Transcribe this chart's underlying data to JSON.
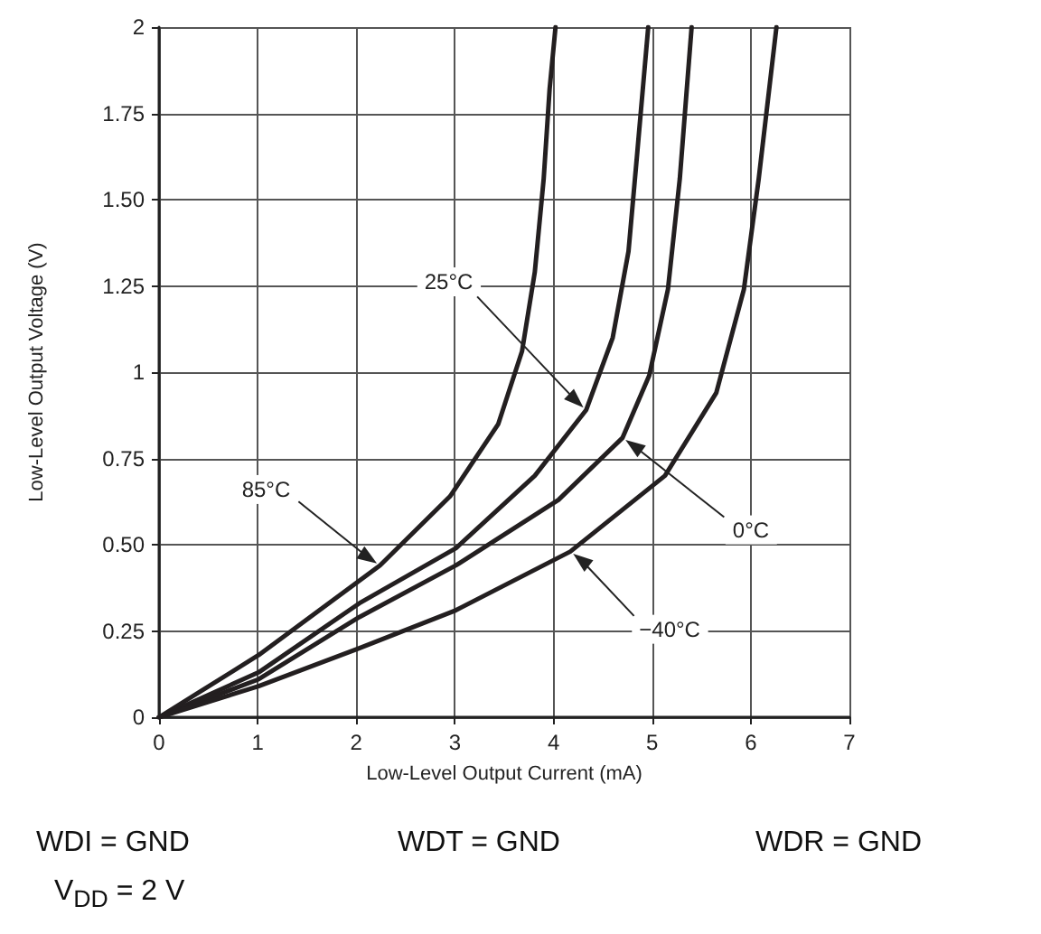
{
  "chart_data": {
    "type": "line",
    "xlabel": "Low-Level Output Current (mA)",
    "ylabel": "Low-Level Output Voltage (V)",
    "xlim": [
      0,
      7
    ],
    "xticks": [
      0,
      1,
      2,
      3,
      4,
      5,
      6,
      7
    ],
    "ylim": [
      0,
      2
    ],
    "yticks": [
      0,
      0.25,
      {
        "value": 0.5,
        "label": "0.50"
      },
      0.75,
      1,
      1.25,
      {
        "value": 1.5,
        "label": "1.50"
      },
      1.75,
      2
    ],
    "grid": true,
    "marker": "none",
    "line_style": "solid",
    "series": [
      {
        "color": "#231f20",
        "x": [
          0,
          1.01,
          2.24,
          2.95,
          3.44,
          3.68,
          3.81,
          3.9,
          3.96,
          4.02
        ],
        "values": [
          0,
          0.18,
          0.44,
          0.64,
          0.85,
          1.06,
          1.29,
          1.56,
          1.82,
          2
        ]
      },
      {
        "color": "#231f20",
        "x": [
          0,
          1.01,
          2.03,
          3.01,
          3.81,
          4.33,
          4.6,
          4.76,
          4.85,
          4.96
        ],
        "values": [
          0,
          0.13,
          0.33,
          0.49,
          0.7,
          0.89,
          1.1,
          1.35,
          1.64,
          2
        ]
      },
      {
        "color": "#231f20",
        "x": [
          0,
          1.01,
          2.03,
          3.01,
          4.05,
          4.7,
          4.97,
          5.16,
          5.28,
          5.4
        ],
        "values": [
          0,
          0.11,
          0.29,
          0.44,
          0.63,
          0.81,
          0.99,
          1.24,
          1.56,
          2
        ]
      },
      {
        "color": "#231f20",
        "x": [
          0,
          1.01,
          2.03,
          3.01,
          4.17,
          5.13,
          5.65,
          5.93,
          6.08,
          6.26
        ],
        "values": [
          0,
          0.09,
          0.2,
          0.31,
          0.48,
          0.7,
          0.94,
          1.24,
          1.56,
          2
        ]
      }
    ],
    "annotations": [
      {
        "text": "85°C",
        "x": 2.24,
        "y": 0.44
      },
      {
        "text": "25°C",
        "x": 4.33,
        "y": 0.89
      },
      {
        "text": "0°C",
        "x": 4.7,
        "y": 0.81
      },
      {
        "text": "−40°C",
        "x": 4.17,
        "y": 0.48
      },
      "WDI = GND",
      "WDT = GND",
      "WDR = GND",
      "V$_{DD}$ = 2 V"
    ]
  }
}
